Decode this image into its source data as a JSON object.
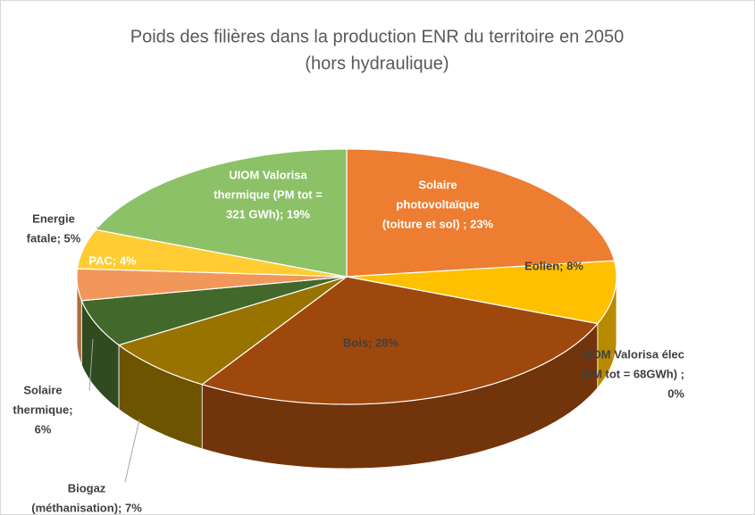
{
  "chart_data": {
    "type": "pie",
    "title": [
      "Poids des filières dans la production ENR du territoire en 2050",
      "(hors hydraulique)"
    ],
    "values": [
      23,
      8,
      0,
      28,
      7,
      6,
      4,
      5,
      19
    ],
    "value_labels": [
      [
        "Solaire",
        "photovoltaïque",
        "(toiture et sol) ; 23%"
      ],
      [
        "Eolien; 8%"
      ],
      [
        "UIOM Valorisa élec",
        "(PM tot = 68GWh) ;",
        "0%"
      ],
      [
        "Bois; 28%"
      ],
      [
        "Biogaz",
        "(méthanisation); 7%"
      ],
      [
        "Solaire",
        "thermique;",
        "6%"
      ],
      [
        "PAC; 4%"
      ],
      [
        "Energie",
        "fatale; 5%"
      ],
      [
        "UIOM Valorisa",
        "thermique (PM tot =",
        "321 GWh); 19%"
      ]
    ],
    "colors": [
      "#ED7D31",
      "#FFC000",
      "#A5A5A5",
      "#9E480E",
      "#997300",
      "#43682B",
      "#F1975A",
      "#FFCD33",
      "#8CC168"
    ]
  }
}
